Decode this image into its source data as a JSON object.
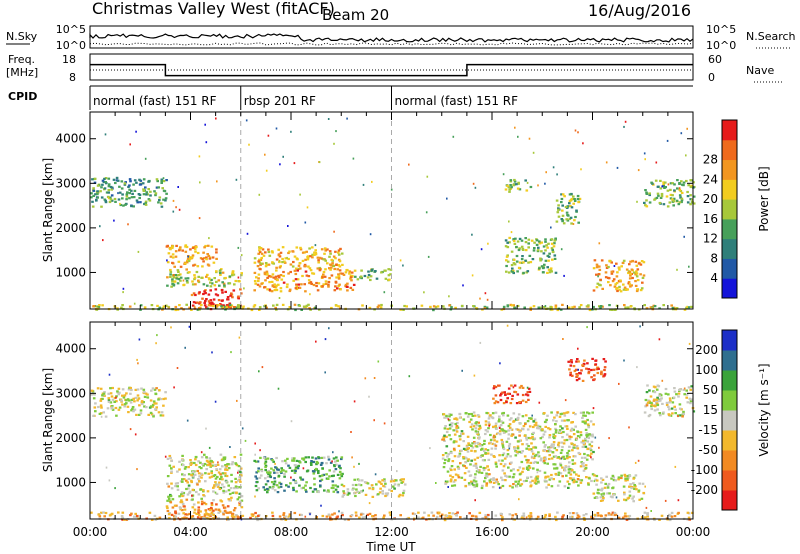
{
  "header": {
    "title": "Christmas Valley West (fitACF)",
    "beam": "Beam 20",
    "date": "16/Aug/2016"
  },
  "summary": {
    "nsky_label": "N.Sky",
    "nsky_ticks": [
      "10^5",
      "10^0"
    ],
    "nsearch_label": "N.Search",
    "nsearch_ticks": [
      "10^5",
      "10^0"
    ],
    "freq_label_1": "Freq.",
    "freq_label_2": "[MHz]",
    "freq_ticks": [
      "18",
      "8"
    ],
    "nave_label": "Nave",
    "nave_ticks": [
      "60",
      "0"
    ],
    "cpid_label": "CPID",
    "cpid_segments": [
      {
        "text": "normal (fast) 151 RF",
        "start_hour": 0,
        "end_hour": 6
      },
      {
        "text": "rbsp 201 RF",
        "start_hour": 6,
        "end_hour": 12
      },
      {
        "text": "normal (fast) 151 RF",
        "start_hour": 12,
        "end_hour": 24
      }
    ],
    "freq_steps": [
      {
        "start_hour": 0,
        "end_hour": 3,
        "freq_mhz": 15
      },
      {
        "start_hour": 3,
        "end_hour": 15,
        "freq_mhz": 10
      },
      {
        "start_hour": 15,
        "end_hour": 24,
        "freq_mhz": 15
      }
    ]
  },
  "chart_data": [
    {
      "type": "heatmap",
      "parameter": "Power",
      "ylabel": "Slant Range [km]",
      "yticks": [
        "1000",
        "2000",
        "3000",
        "4000"
      ],
      "ylim": [
        180,
        4600
      ],
      "xlim_hours": [
        0,
        24
      ],
      "colorbar_label": "Power [dB]",
      "colorbar_ticks": [
        "4",
        "8",
        "12",
        "16",
        "20",
        "24",
        "28"
      ],
      "colorbar_colors": [
        "#1414d9",
        "#2159a6",
        "#2f7f7a",
        "#47a05a",
        "#a7c83a",
        "#f2cc1f",
        "#f29620",
        "#ef6a1c",
        "#e61b1b"
      ],
      "regions": [
        {
          "t0": 0.0,
          "t1": 3.0,
          "r0": 2500,
          "r1": 3150,
          "level": 0.35
        },
        {
          "t0": 3.0,
          "t1": 5.0,
          "r0": 1150,
          "r1": 1650,
          "level": 0.7
        },
        {
          "t0": 3.0,
          "t1": 6.0,
          "r0": 700,
          "r1": 1100,
          "level": 0.55
        },
        {
          "t0": 4.0,
          "t1": 6.0,
          "r0": 200,
          "r1": 650,
          "level": 0.9
        },
        {
          "t0": 6.5,
          "t1": 10.0,
          "r0": 1100,
          "r1": 1600,
          "level": 0.65
        },
        {
          "t0": 6.5,
          "t1": 10.5,
          "r0": 600,
          "r1": 1100,
          "level": 0.75
        },
        {
          "t0": 10.5,
          "t1": 12.0,
          "r0": 850,
          "r1": 1100,
          "level": 0.4
        },
        {
          "t0": 16.5,
          "t1": 17.5,
          "r0": 2800,
          "r1": 3100,
          "level": 0.45
        },
        {
          "t0": 18.5,
          "t1": 19.5,
          "r0": 2100,
          "r1": 2800,
          "level": 0.45
        },
        {
          "t0": 20.0,
          "t1": 22.0,
          "r0": 600,
          "r1": 1300,
          "level": 0.7
        },
        {
          "t0": 22.0,
          "t1": 24.0,
          "r0": 2500,
          "r1": 3100,
          "level": 0.45
        },
        {
          "t0": 16.5,
          "t1": 18.5,
          "r0": 1000,
          "r1": 1800,
          "level": 0.45
        },
        {
          "t0": 0.0,
          "t1": 24.0,
          "r0": 180,
          "r1": 300,
          "level": 0.55
        }
      ]
    },
    {
      "type": "heatmap",
      "parameter": "Velocity",
      "ylabel": "Slant Range [km]",
      "yticks": [
        "1000",
        "2000",
        "3000",
        "4000"
      ],
      "ylim": [
        180,
        4600
      ],
      "xlim_hours": [
        0,
        24
      ],
      "xticks": [
        "00:00",
        "04:00",
        "08:00",
        "12:00",
        "16:00",
        "20:00",
        "00:00"
      ],
      "xlabel": "Time UT",
      "colorbar_label": "Velocity [m s⁻¹]",
      "colorbar_ticks": [
        "-200",
        "-100",
        "-50",
        "-15",
        "15",
        "50",
        "100",
        "200"
      ],
      "colorbar_colors": [
        "#e61b1b",
        "#ef5a1e",
        "#f28a22",
        "#f2b82c",
        "#c8c8c0",
        "#7fcb3c",
        "#3aa33a",
        "#2f6f8f",
        "#1c2fc7"
      ],
      "regions": [
        {
          "t0": 0.0,
          "t1": 3.0,
          "r0": 2500,
          "r1": 3150,
          "level": 0.5
        },
        {
          "t0": 3.0,
          "t1": 6.0,
          "r0": 600,
          "r1": 1650,
          "level": 0.5
        },
        {
          "t0": 3.0,
          "t1": 6.0,
          "r0": 200,
          "r1": 600,
          "level": 0.3
        },
        {
          "t0": 6.5,
          "t1": 10.0,
          "r0": 800,
          "r1": 1600,
          "level": 0.68
        },
        {
          "t0": 10.0,
          "t1": 12.5,
          "r0": 700,
          "r1": 1100,
          "level": 0.5
        },
        {
          "t0": 14.0,
          "t1": 20.0,
          "r0": 900,
          "r1": 2600,
          "level": 0.5
        },
        {
          "t0": 20.0,
          "t1": 22.0,
          "r0": 600,
          "r1": 1200,
          "level": 0.5
        },
        {
          "t0": 22.0,
          "t1": 24.0,
          "r0": 2500,
          "r1": 3200,
          "level": 0.5
        },
        {
          "t0": 16.0,
          "t1": 17.5,
          "r0": 2800,
          "r1": 3200,
          "level": 0.15
        },
        {
          "t0": 19.0,
          "t1": 20.5,
          "r0": 3300,
          "r1": 3800,
          "level": 0.1
        },
        {
          "t0": 0.0,
          "t1": 24.0,
          "r0": 180,
          "r1": 350,
          "level": 0.38
        }
      ]
    }
  ]
}
